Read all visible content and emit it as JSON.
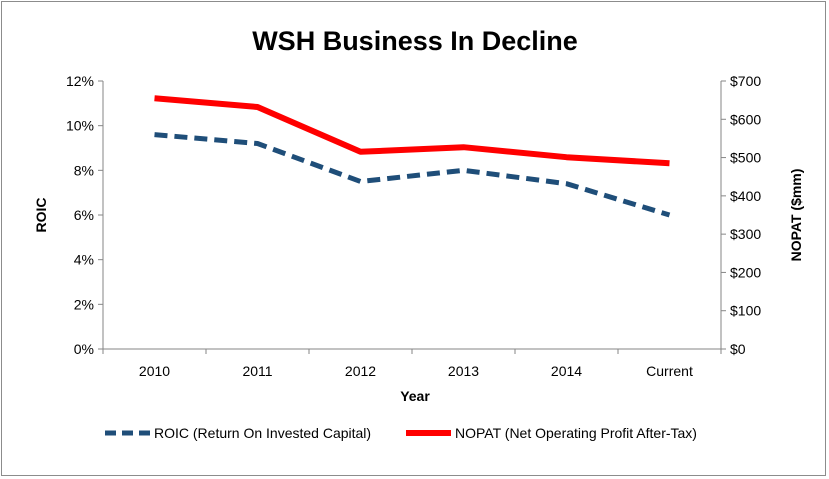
{
  "chart_data": {
    "type": "line",
    "title": "WSH Business In Decline",
    "xlabel": "Year",
    "ylabel": "ROIC",
    "y2label": "NOPAT ($mm)",
    "categories": [
      "2010",
      "2011",
      "2012",
      "2013",
      "2014",
      "Current"
    ],
    "ylim": [
      0,
      12
    ],
    "y2lim": [
      0,
      700
    ],
    "yticks": [
      "0%",
      "2%",
      "4%",
      "6%",
      "8%",
      "10%",
      "12%"
    ],
    "y2ticks": [
      "$0",
      "$100",
      "$200",
      "$300",
      "$400",
      "$500",
      "$600",
      "$700"
    ],
    "grid": false,
    "legend_position": "bottom",
    "series": [
      {
        "name": "ROIC (Return On Invested Capital)",
        "axis": "left",
        "unit": "%",
        "values": [
          9.6,
          9.2,
          7.5,
          8.0,
          7.4,
          6.0
        ],
        "color": "#1f4e79",
        "style": "dashed"
      },
      {
        "name": "NOPAT (Net Operating Profit After-Tax)",
        "axis": "right",
        "unit": "$mm",
        "values": [
          655,
          632,
          515,
          527,
          501,
          485
        ],
        "color": "#ff0000",
        "style": "solid"
      }
    ]
  }
}
